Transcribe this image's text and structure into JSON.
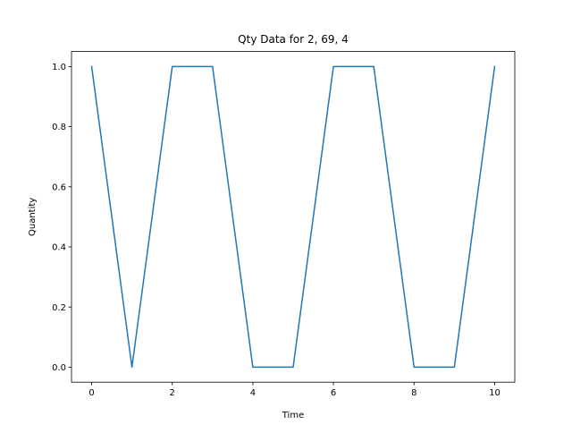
{
  "chart_data": {
    "type": "line",
    "title": "Qty Data for 2, 69, 4",
    "xlabel": "Time",
    "ylabel": "Quantity",
    "x": [
      0,
      1,
      2,
      3,
      4,
      5,
      6,
      7,
      8,
      9,
      10
    ],
    "series": [
      {
        "values": [
          1,
          0,
          1,
          1,
          0,
          0,
          1,
          1,
          0,
          0,
          1
        ],
        "color": "#1f77b4"
      }
    ],
    "xlim": [
      -0.5,
      10.5
    ],
    "ylim": [
      -0.05,
      1.05
    ],
    "xticks": [
      0,
      2,
      4,
      6,
      8,
      10
    ],
    "xtick_labels": [
      "0",
      "2",
      "4",
      "6",
      "8",
      "10"
    ],
    "yticks": [
      0.0,
      0.2,
      0.4,
      0.6,
      0.8,
      1.0
    ],
    "ytick_labels": [
      "0.0",
      "0.2",
      "0.4",
      "0.6",
      "0.8",
      "1.0"
    ],
    "grid": false,
    "legend": "none"
  }
}
